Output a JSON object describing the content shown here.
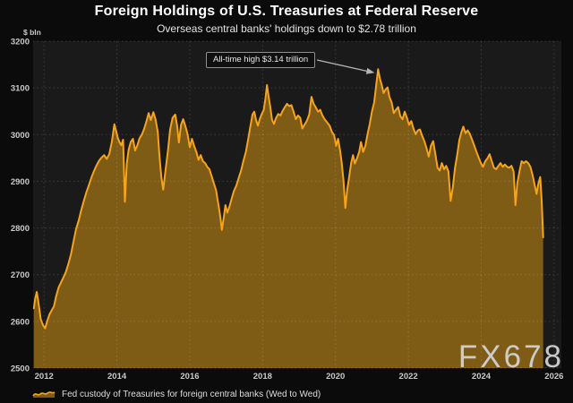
{
  "watermark": "FX678",
  "chart_data": {
    "type": "area",
    "title": "Foreign Holdings of U.S. Treasuries at Federal Reserve",
    "subtitle": "Overseas central banks' holdings down to $2.78 trillion",
    "y_axis_unit": "$ bln",
    "xlim": [
      2011.7,
      2026.2
    ],
    "ylim": [
      2500,
      3200
    ],
    "x_ticks": [
      2012,
      2014,
      2016,
      2018,
      2020,
      2022,
      2024,
      2026
    ],
    "y_ticks": [
      3200,
      3100,
      3000,
      2900,
      2800,
      2700,
      2600,
      2500
    ],
    "grid": "dotted",
    "legend_position": "bottom-left",
    "annotation": {
      "text": "All-time high $3.14 trillion",
      "target_year": 2021.17,
      "target_value": 3140
    },
    "colors": {
      "line": "#f7a41d",
      "fill": "#7e5c15",
      "plot_bg": "#1a1a1a",
      "page_bg": "#0b0b0b",
      "grid": "rgba(255,255,255,0.16)",
      "tick_text": "#c9c9c9",
      "arrow": "#b4b4b4"
    },
    "series": [
      {
        "name": "Fed custody of Treasuries for foreign central banks (Wed to Wed)",
        "points": [
          [
            2011.72,
            2628
          ],
          [
            2011.76,
            2650
          ],
          [
            2011.8,
            2663
          ],
          [
            2011.85,
            2638
          ],
          [
            2011.91,
            2605
          ],
          [
            2011.97,
            2592
          ],
          [
            2012.03,
            2585
          ],
          [
            2012.09,
            2602
          ],
          [
            2012.15,
            2615
          ],
          [
            2012.21,
            2624
          ],
          [
            2012.27,
            2632
          ],
          [
            2012.33,
            2653
          ],
          [
            2012.4,
            2673
          ],
          [
            2012.47,
            2684
          ],
          [
            2012.53,
            2694
          ],
          [
            2012.6,
            2706
          ],
          [
            2012.67,
            2724
          ],
          [
            2012.74,
            2744
          ],
          [
            2012.81,
            2772
          ],
          [
            2012.88,
            2798
          ],
          [
            2012.95,
            2816
          ],
          [
            2013.02,
            2838
          ],
          [
            2013.09,
            2858
          ],
          [
            2013.16,
            2876
          ],
          [
            2013.23,
            2892
          ],
          [
            2013.3,
            2908
          ],
          [
            2013.37,
            2922
          ],
          [
            2013.44,
            2934
          ],
          [
            2013.51,
            2944
          ],
          [
            2013.58,
            2951
          ],
          [
            2013.65,
            2956
          ],
          [
            2013.72,
            2948
          ],
          [
            2013.79,
            2958
          ],
          [
            2013.86,
            2984
          ],
          [
            2013.93,
            3022
          ],
          [
            2013.97,
            3010
          ],
          [
            2014.02,
            2994
          ],
          [
            2014.07,
            2984
          ],
          [
            2014.12,
            2977
          ],
          [
            2014.17,
            2989
          ],
          [
            2014.22,
            2856
          ],
          [
            2014.27,
            2938
          ],
          [
            2014.32,
            2967
          ],
          [
            2014.38,
            2984
          ],
          [
            2014.44,
            2991
          ],
          [
            2014.5,
            2966
          ],
          [
            2014.56,
            2977
          ],
          [
            2014.62,
            2992
          ],
          [
            2014.69,
            3001
          ],
          [
            2014.75,
            3013
          ],
          [
            2014.81,
            3028
          ],
          [
            2014.87,
            3046
          ],
          [
            2014.93,
            3031
          ],
          [
            2015.0,
            3048
          ],
          [
            2015.06,
            3033
          ],
          [
            2015.12,
            3006
          ],
          [
            2015.17,
            2952
          ],
          [
            2015.22,
            2909
          ],
          [
            2015.27,
            2882
          ],
          [
            2015.33,
            2921
          ],
          [
            2015.4,
            2966
          ],
          [
            2015.46,
            3011
          ],
          [
            2015.53,
            3036
          ],
          [
            2015.6,
            3043
          ],
          [
            2015.65,
            3021
          ],
          [
            2015.7,
            2983
          ],
          [
            2015.76,
            3021
          ],
          [
            2015.82,
            3033
          ],
          [
            2015.88,
            3018
          ],
          [
            2015.94,
            3001
          ],
          [
            2016.0,
            2973
          ],
          [
            2016.06,
            2991
          ],
          [
            2016.12,
            2976
          ],
          [
            2016.18,
            2963
          ],
          [
            2016.24,
            2946
          ],
          [
            2016.3,
            2956
          ],
          [
            2016.36,
            2943
          ],
          [
            2016.42,
            2939
          ],
          [
            2016.48,
            2931
          ],
          [
            2016.54,
            2926
          ],
          [
            2016.6,
            2911
          ],
          [
            2016.66,
            2896
          ],
          [
            2016.72,
            2881
          ],
          [
            2016.78,
            2853
          ],
          [
            2016.83,
            2829
          ],
          [
            2016.88,
            2796
          ],
          [
            2016.93,
            2821
          ],
          [
            2016.98,
            2849
          ],
          [
            2017.03,
            2833
          ],
          [
            2017.09,
            2846
          ],
          [
            2017.15,
            2863
          ],
          [
            2017.21,
            2879
          ],
          [
            2017.28,
            2891
          ],
          [
            2017.35,
            2909
          ],
          [
            2017.41,
            2923
          ],
          [
            2017.47,
            2943
          ],
          [
            2017.54,
            2963
          ],
          [
            2017.6,
            2989
          ],
          [
            2017.66,
            3016
          ],
          [
            2017.72,
            3043
          ],
          [
            2017.77,
            3049
          ],
          [
            2017.82,
            3031
          ],
          [
            2017.87,
            3019
          ],
          [
            2017.92,
            3033
          ],
          [
            2017.97,
            3043
          ],
          [
            2018.03,
            3053
          ],
          [
            2018.08,
            3079
          ],
          [
            2018.12,
            3106
          ],
          [
            2018.16,
            3083
          ],
          [
            2018.21,
            3059
          ],
          [
            2018.26,
            3031
          ],
          [
            2018.31,
            3023
          ],
          [
            2018.37,
            3036
          ],
          [
            2018.43,
            3044
          ],
          [
            2018.49,
            3041
          ],
          [
            2018.55,
            3051
          ],
          [
            2018.61,
            3059
          ],
          [
            2018.67,
            3066
          ],
          [
            2018.73,
            3061
          ],
          [
            2018.79,
            3063
          ],
          [
            2018.85,
            3049
          ],
          [
            2018.91,
            3033
          ],
          [
            2018.97,
            3041
          ],
          [
            2019.03,
            3036
          ],
          [
            2019.09,
            3013
          ],
          [
            2019.15,
            3021
          ],
          [
            2019.21,
            3029
          ],
          [
            2019.28,
            3043
          ],
          [
            2019.34,
            3081
          ],
          [
            2019.4,
            3066
          ],
          [
            2019.46,
            3058
          ],
          [
            2019.52,
            3049
          ],
          [
            2019.58,
            3053
          ],
          [
            2019.64,
            3041
          ],
          [
            2019.7,
            3033
          ],
          [
            2019.77,
            3026
          ],
          [
            2019.84,
            3019
          ],
          [
            2019.9,
            3006
          ],
          [
            2019.96,
            2999
          ],
          [
            2020.02,
            2976
          ],
          [
            2020.07,
            2991
          ],
          [
            2020.12,
            2969
          ],
          [
            2020.17,
            2941
          ],
          [
            2020.22,
            2901
          ],
          [
            2020.27,
            2843
          ],
          [
            2020.32,
            2881
          ],
          [
            2020.37,
            2907
          ],
          [
            2020.43,
            2939
          ],
          [
            2020.48,
            2956
          ],
          [
            2020.53,
            2938
          ],
          [
            2020.59,
            2949
          ],
          [
            2020.65,
            2963
          ],
          [
            2020.7,
            2984
          ],
          [
            2020.76,
            2963
          ],
          [
            2020.82,
            2976
          ],
          [
            2020.88,
            3001
          ],
          [
            2020.94,
            3023
          ],
          [
            2021.0,
            3049
          ],
          [
            2021.06,
            3069
          ],
          [
            2021.11,
            3101
          ],
          [
            2021.17,
            3140
          ],
          [
            2021.22,
            3119
          ],
          [
            2021.27,
            3106
          ],
          [
            2021.32,
            3089
          ],
          [
            2021.37,
            3096
          ],
          [
            2021.43,
            3101
          ],
          [
            2021.48,
            3081
          ],
          [
            2021.54,
            3069
          ],
          [
            2021.6,
            3046
          ],
          [
            2021.66,
            3053
          ],
          [
            2021.72,
            3059
          ],
          [
            2021.78,
            3039
          ],
          [
            2021.84,
            3033
          ],
          [
            2021.9,
            3049
          ],
          [
            2021.96,
            3036
          ],
          [
            2022.02,
            3021
          ],
          [
            2022.08,
            3029
          ],
          [
            2022.14,
            3013
          ],
          [
            2022.2,
            3001
          ],
          [
            2022.26,
            3009
          ],
          [
            2022.32,
            3011
          ],
          [
            2022.38,
            2997
          ],
          [
            2022.44,
            2986
          ],
          [
            2022.5,
            2971
          ],
          [
            2022.56,
            2953
          ],
          [
            2022.62,
            2976
          ],
          [
            2022.68,
            2986
          ],
          [
            2022.74,
            2959
          ],
          [
            2022.8,
            2929
          ],
          [
            2022.86,
            2923
          ],
          [
            2022.92,
            2939
          ],
          [
            2022.98,
            2926
          ],
          [
            2023.04,
            2933
          ],
          [
            2023.1,
            2921
          ],
          [
            2023.16,
            2858
          ],
          [
            2023.22,
            2886
          ],
          [
            2023.28,
            2929
          ],
          [
            2023.34,
            2956
          ],
          [
            2023.4,
            2989
          ],
          [
            2023.46,
            3006
          ],
          [
            2023.51,
            3017
          ],
          [
            2023.57,
            3003
          ],
          [
            2023.63,
            3009
          ],
          [
            2023.69,
            3001
          ],
          [
            2023.75,
            2989
          ],
          [
            2023.81,
            2976
          ],
          [
            2023.87,
            2963
          ],
          [
            2023.93,
            2951
          ],
          [
            2023.99,
            2939
          ],
          [
            2024.05,
            2931
          ],
          [
            2024.11,
            2943
          ],
          [
            2024.17,
            2949
          ],
          [
            2024.23,
            2958
          ],
          [
            2024.29,
            2943
          ],
          [
            2024.35,
            2929
          ],
          [
            2024.41,
            2926
          ],
          [
            2024.47,
            2933
          ],
          [
            2024.53,
            2939
          ],
          [
            2024.59,
            2931
          ],
          [
            2024.65,
            2936
          ],
          [
            2024.71,
            2931
          ],
          [
            2024.77,
            2929
          ],
          [
            2024.83,
            2933
          ],
          [
            2024.89,
            2921
          ],
          [
            2024.94,
            2849
          ],
          [
            2024.99,
            2896
          ],
          [
            2025.05,
            2921
          ],
          [
            2025.11,
            2943
          ],
          [
            2025.17,
            2939
          ],
          [
            2025.23,
            2943
          ],
          [
            2025.29,
            2939
          ],
          [
            2025.35,
            2931
          ],
          [
            2025.41,
            2913
          ],
          [
            2025.47,
            2891
          ],
          [
            2025.52,
            2873
          ],
          [
            2025.57,
            2896
          ],
          [
            2025.62,
            2909
          ],
          [
            2025.66,
            2859
          ],
          [
            2025.7,
            2780
          ]
        ]
      }
    ]
  }
}
